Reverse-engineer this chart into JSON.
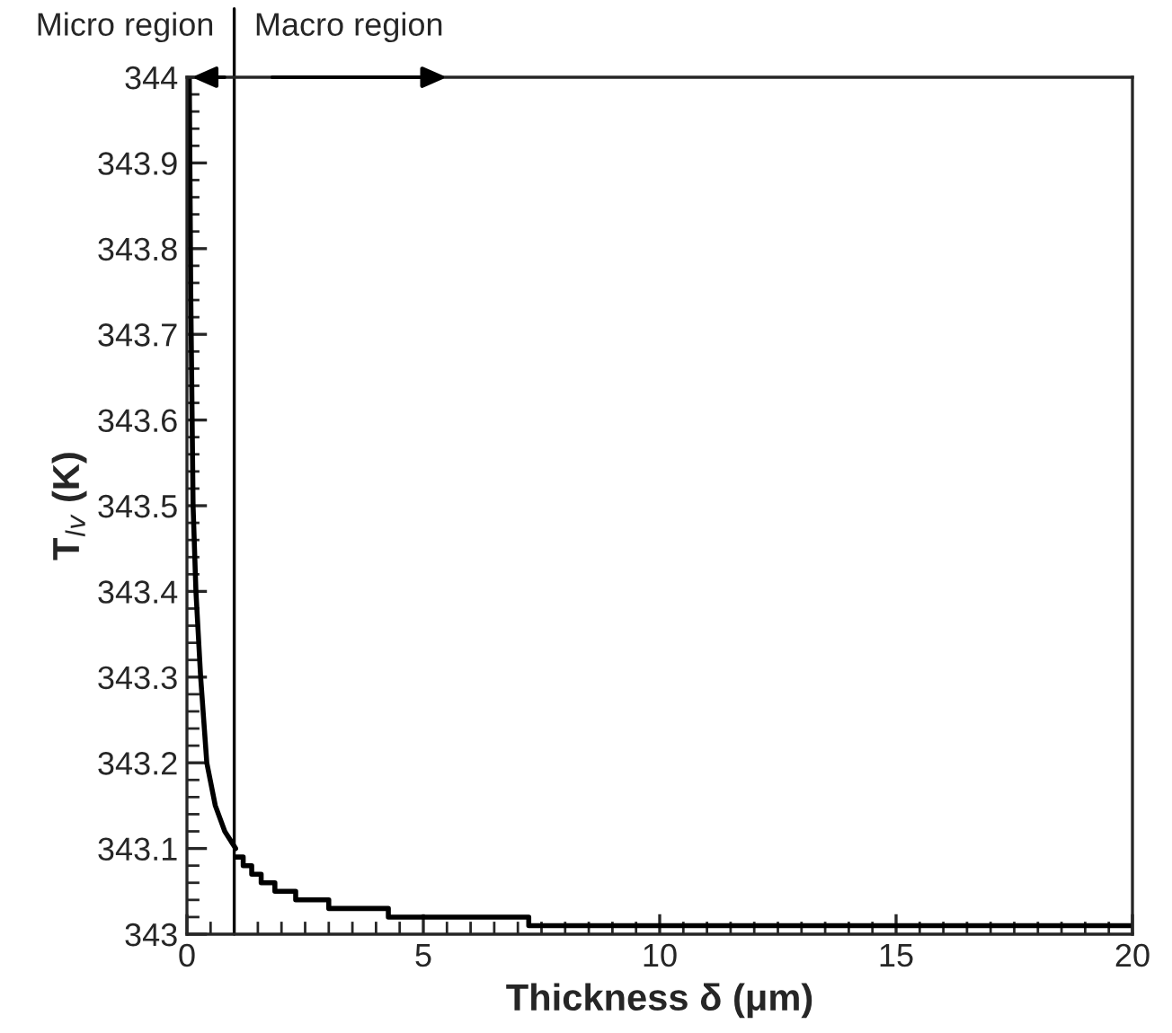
{
  "chart_data": {
    "type": "line",
    "xlabel": "Thickness δ (μm)",
    "ylabel": "T$_{lv}$ (K)",
    "series": [
      {
        "color": "#000000",
        "x": [
          0.05,
          0.08,
          0.13,
          0.19,
          0.29,
          0.42,
          0.6,
          0.8,
          1.03
        ],
        "values": [
          344.0,
          343.75,
          343.5,
          343.4,
          343.3,
          343.2,
          343.15,
          343.12,
          343.1
        ]
      },
      {
        "type": "step",
        "color": "#000000",
        "x": [
          1.03,
          1.19,
          1.37,
          1.57,
          1.86,
          2.3,
          3.0,
          4.26,
          7.23,
          20
        ],
        "values": [
          343.09,
          343.08,
          343.07,
          343.06,
          343.05,
          343.04,
          343.03,
          343.02,
          343.01,
          343.01
        ]
      }
    ],
    "xlim": [
      0,
      20
    ],
    "xticks": [
      0,
      5,
      10,
      15,
      20
    ],
    "ylim": [
      343,
      344
    ],
    "yticks": [
      343,
      343.1,
      343.2,
      343.3,
      343.4,
      343.5,
      343.6,
      343.7,
      343.8,
      343.9,
      344
    ],
    "ref_lines": [
      {
        "axis": "x",
        "value": 1,
        "color": "#000000"
      }
    ],
    "annotations": [
      {
        "text": "Micro region",
        "x": 1,
        "y": 344
      },
      {
        "text": "Macro region",
        "x": 1,
        "y": 344
      }
    ],
    "grid": false,
    "legend": false
  }
}
